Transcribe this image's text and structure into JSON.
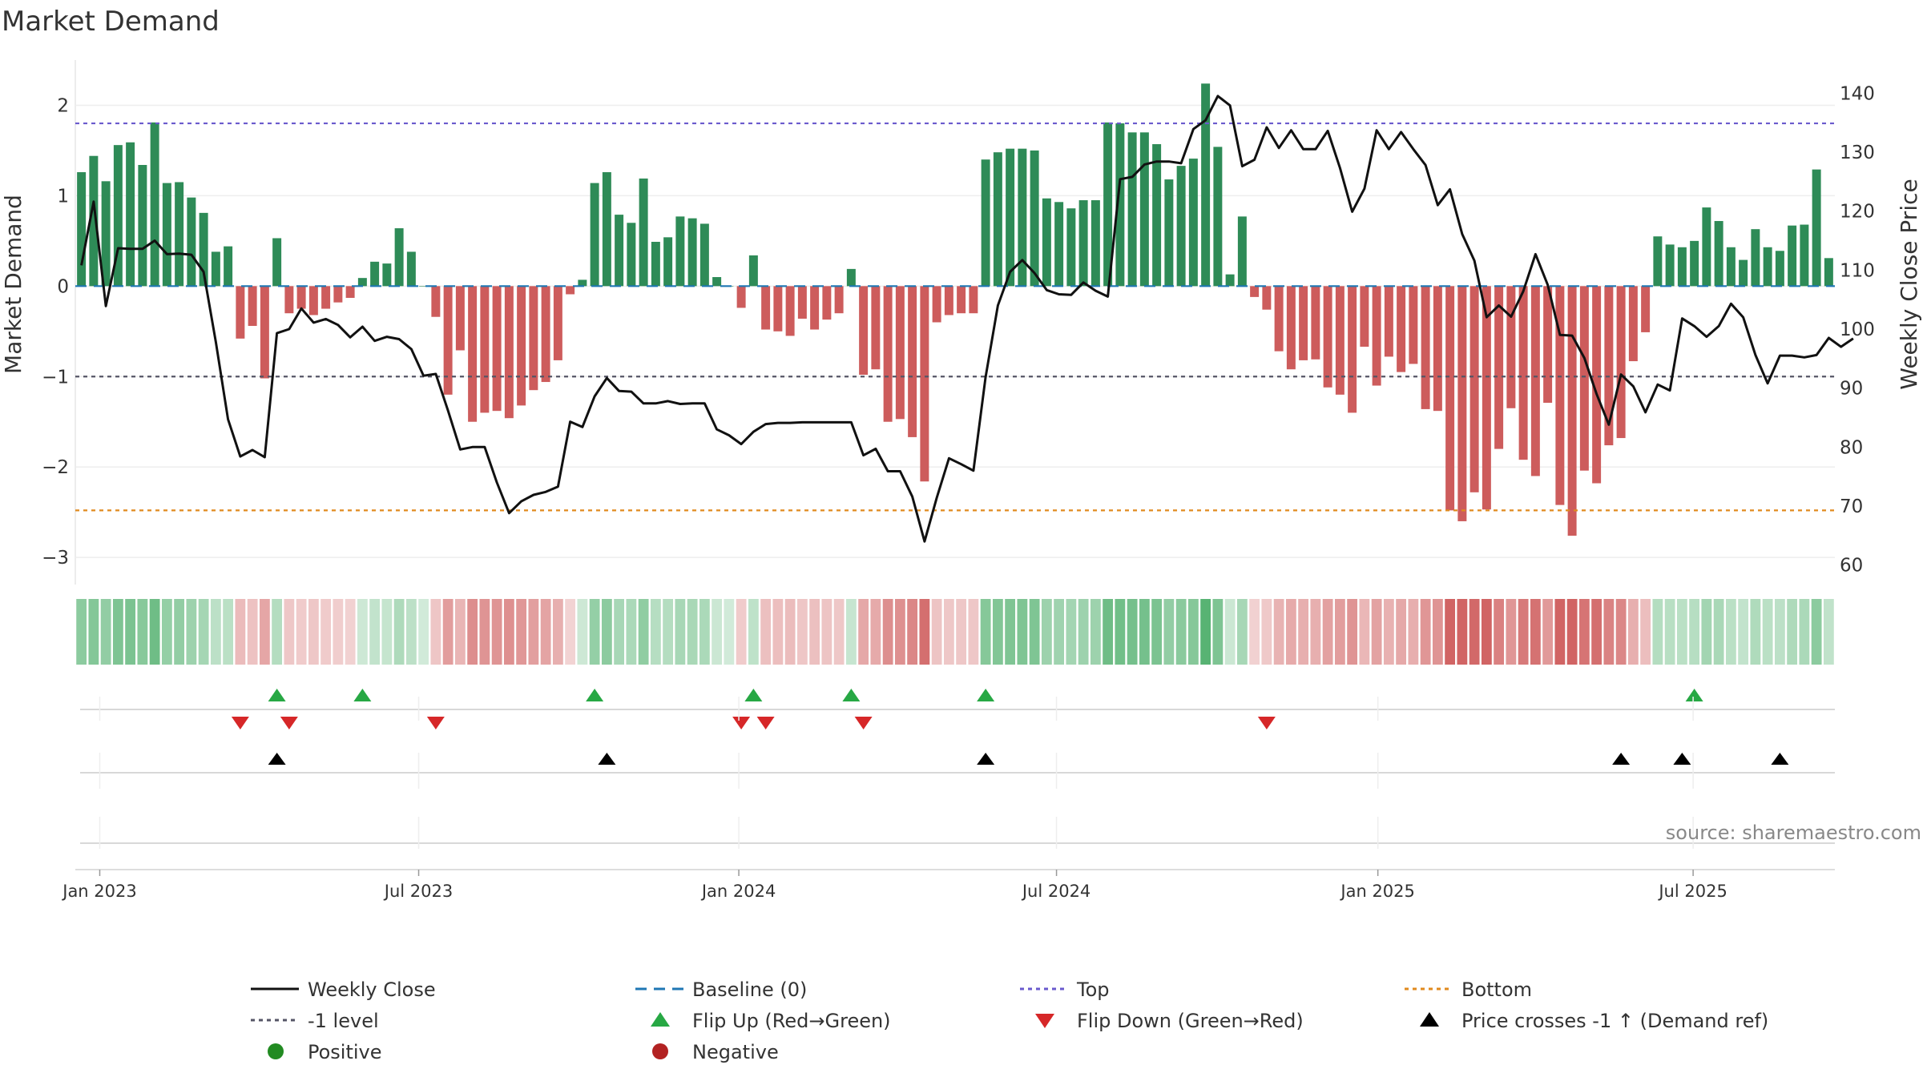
{
  "chart_data": {
    "type": "bar",
    "title": "Market Demand",
    "ylabel": "Market Demand",
    "ylabel_right": "Weekly Close Price",
    "ylim": [
      -3.3,
      2.5
    ],
    "ylim_right": [
      56.7,
      145.6
    ],
    "yticks": [
      2,
      1,
      0,
      -1,
      -2,
      -3
    ],
    "yticks_labels": [
      "2",
      "1",
      "0",
      "−1",
      "−2",
      "−3"
    ],
    "yticks_right": [
      140,
      130,
      120,
      110,
      100,
      90,
      80,
      70,
      60
    ],
    "xticks": [
      {
        "week": 1.5,
        "label": "Jan 2023"
      },
      {
        "week": 27.6,
        "label": "Jul 2023"
      },
      {
        "week": 53.8,
        "label": "Jan 2024"
      },
      {
        "week": 79.8,
        "label": "Jul 2024"
      },
      {
        "week": 106.1,
        "label": "Jan 2025"
      },
      {
        "week": 131.9,
        "label": "Jul 2025"
      }
    ],
    "x_start": "2022-12-19",
    "top_level": 1.8,
    "bottom_level": -2.48,
    "minus_one_level": -1,
    "demand": [
      1.26,
      1.44,
      1.16,
      1.56,
      1.59,
      1.34,
      1.81,
      1.14,
      1.15,
      0.98,
      0.81,
      0.38,
      0.44,
      -0.58,
      -0.44,
      -1.02,
      0.53,
      -0.3,
      -0.25,
      -0.32,
      -0.25,
      -0.18,
      -0.13,
      0.09,
      0.27,
      0.25,
      0.64,
      0.38,
      0.0,
      -0.34,
      -1.2,
      -0.71,
      -1.5,
      -1.4,
      -1.38,
      -1.46,
      -1.32,
      -1.15,
      -1.06,
      -0.82,
      -0.09,
      0.07,
      1.14,
      1.26,
      0.79,
      0.7,
      1.19,
      0.49,
      0.54,
      0.77,
      0.75,
      0.69,
      0.1,
      0.0,
      -0.24,
      0.34,
      -0.48,
      -0.5,
      -0.55,
      -0.36,
      -0.48,
      -0.37,
      -0.3,
      0.19,
      -0.98,
      -0.92,
      -1.5,
      -1.47,
      -1.67,
      -2.16,
      -0.4,
      -0.32,
      -0.3,
      -0.3,
      1.4,
      1.48,
      1.52,
      1.52,
      1.5,
      0.97,
      0.93,
      0.86,
      0.95,
      0.95,
      1.81,
      1.8,
      1.7,
      1.7,
      1.57,
      1.18,
      1.33,
      1.41,
      2.24,
      1.54,
      0.13,
      0.77,
      -0.12,
      -0.26,
      -0.72,
      -0.92,
      -0.82,
      -0.81,
      -1.12,
      -1.2,
      -1.4,
      -0.67,
      -1.1,
      -0.78,
      -0.95,
      -0.86,
      -1.36,
      -1.38,
      -2.48,
      -2.6,
      -2.28,
      -2.47,
      -1.8,
      -1.35,
      -1.92,
      -2.1,
      -1.29,
      -2.42,
      -2.76,
      -2.04,
      -2.18,
      -1.76,
      -1.68,
      -0.83,
      -0.51,
      0.55,
      0.46,
      0.43,
      0.5,
      0.87,
      0.72,
      0.43,
      0.29,
      0.63,
      0.43,
      0.39,
      0.67,
      0.68,
      1.29,
      0.31
    ],
    "price": [
      110.8,
      121.6,
      103.9,
      113.7,
      113.6,
      113.6,
      115.0,
      112.7,
      112.8,
      112.6,
      109.7,
      97.8,
      84.7,
      78.4,
      79.5,
      78.3,
      99.3,
      100.0,
      103.5,
      101.1,
      101.7,
      100.7,
      98.6,
      100.4,
      98.0,
      98.7,
      98.3,
      96.6,
      92.1,
      92.4,
      86.2,
      79.6,
      80.0,
      80.0,
      74.0,
      68.8,
      70.8,
      71.9,
      72.4,
      73.3,
      84.3,
      83.4,
      88.6,
      91.7,
      89.5,
      89.4,
      87.4,
      87.4,
      87.8,
      87.3,
      87.4,
      87.4,
      83.0,
      82.0,
      80.5,
      82.6,
      83.9,
      84.1,
      84.1,
      84.2,
      84.2,
      84.2,
      84.2,
      84.2,
      78.6,
      79.7,
      75.9,
      75.9,
      71.6,
      64.0,
      71.4,
      78.1,
      77.1,
      76.0,
      91.9,
      104.0,
      109.7,
      111.7,
      109.5,
      106.6,
      105.9,
      105.8,
      107.9,
      106.5,
      105.5,
      125.4,
      125.8,
      127.9,
      128.4,
      128.4,
      128.1,
      133.9,
      135.4,
      139.5,
      137.9,
      127.6,
      128.7,
      134.2,
      130.7,
      133.7,
      130.5,
      130.5,
      133.6,
      127.3,
      119.9,
      123.8,
      133.7,
      130.5,
      133.4,
      130.5,
      127.8,
      121.0,
      123.7,
      116.1,
      111.6,
      102.0,
      104.0,
      102.1,
      106.4,
      112.7,
      107.5,
      99.0,
      98.9,
      95.1,
      89.0,
      83.8,
      92.3,
      90.3,
      85.9,
      90.6,
      89.6,
      101.8,
      100.5,
      98.7,
      100.5,
      104.3,
      102.0,
      95.6,
      90.8,
      95.5,
      95.5,
      95.2,
      95.6,
      98.5,
      97.0,
      98.4
    ],
    "flip_up_weeks": [
      16,
      23,
      42,
      55,
      63,
      74,
      132
    ],
    "flip_down_weeks": [
      13,
      17,
      29,
      54,
      56,
      64,
      97
    ],
    "price_cross_weeks": [
      16,
      43,
      74,
      126,
      131,
      139
    ],
    "legend": {
      "weekly_close": "Weekly Close",
      "baseline": "Baseline (0)",
      "top": "Top",
      "bottom": "Bottom",
      "minus_one": "-1 level",
      "flip_up": "Flip Up (Red→Green)",
      "flip_down": "Flip Down (Green→Red)",
      "price_cross": "Price crosses -1 ↑ (Demand ref)",
      "positive": "Positive",
      "negative": "Negative"
    },
    "source": "source: sharemaestro.com"
  },
  "colors": {
    "positive_bar": "#2e8b57",
    "negative_bar": "#cd5c5c",
    "price_line": "#111111",
    "top_line": "#6a5acd",
    "bottom_line": "#e08a1e",
    "minus_one_line": "#555566",
    "baseline": "#1f77b4",
    "flip_up": "#27a844",
    "flip_down": "#d62728",
    "cross": "#000000",
    "positive_dot": "#228b22",
    "negative_dot": "#b22222"
  }
}
